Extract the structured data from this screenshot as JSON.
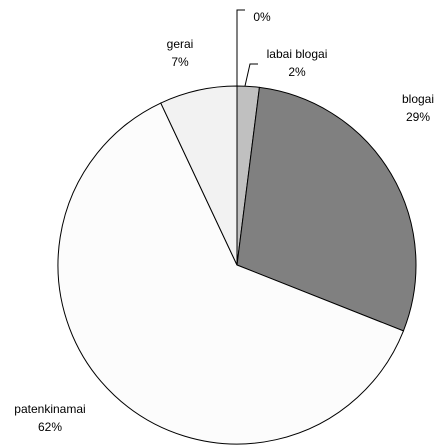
{
  "chart_data": {
    "type": "pie",
    "categories": [
      null,
      "labai blogai",
      "blogai",
      "patenkinamai",
      "gerai"
    ],
    "values": [
      0,
      2,
      29,
      62,
      7
    ],
    "value_labels": [
      "0%",
      "2%",
      "29%",
      "62%",
      "7%"
    ],
    "colors": [
      "#000000",
      "#c0c0c0",
      "#808080",
      "#fcfcfc",
      "#f2f2f2"
    ]
  }
}
